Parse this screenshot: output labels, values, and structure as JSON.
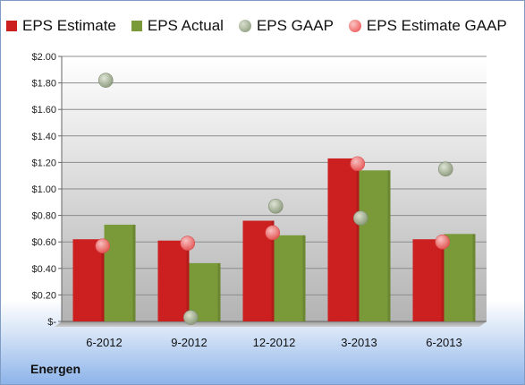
{
  "chart_data": {
    "type": "bar",
    "categories": [
      "6-2012",
      "9-2012",
      "12-2012",
      "3-2013",
      "6-2013"
    ],
    "series": [
      {
        "name": "EPS Estimate",
        "kind": "bar",
        "color": "#cc1f1f",
        "values": [
          0.62,
          0.61,
          0.76,
          1.23,
          0.62
        ]
      },
      {
        "name": "EPS Actual",
        "kind": "bar",
        "color": "#7a9a3a",
        "values": [
          0.73,
          0.44,
          0.65,
          1.14,
          0.66
        ]
      },
      {
        "name": "EPS GAAP",
        "kind": "scatter",
        "color": "#9aa88a",
        "values": [
          1.82,
          0.03,
          0.87,
          0.78,
          1.15
        ]
      },
      {
        "name": "EPS Estimate GAAP",
        "kind": "scatter",
        "color": "#f06a6a",
        "values": [
          0.57,
          0.59,
          0.67,
          1.19,
          0.6
        ]
      }
    ],
    "y_ticks": [
      "$-",
      "$0.20",
      "$0.40",
      "$0.60",
      "$0.80",
      "$1.00",
      "$1.20",
      "$1.40",
      "$1.60",
      "$1.80",
      "$2.00"
    ],
    "ylim": [
      0,
      2.0
    ],
    "grid": true,
    "legend_position": "top",
    "footer_label": "Energen"
  }
}
